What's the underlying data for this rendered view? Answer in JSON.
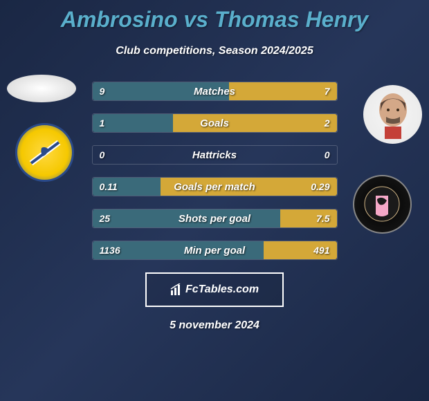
{
  "title": "Ambrosino vs Thomas Henry",
  "subtitle": "Club competitions, Season 2024/2025",
  "date": "5 november 2024",
  "footer_brand": "FcTables.com",
  "colors": {
    "left_fill": "#3a6a7a",
    "right_fill": "#d4a838",
    "title_color": "#5aafcc",
    "text_color": "#ffffff",
    "bg_gradient_start": "#1a2744",
    "bg_gradient_mid": "#26365a"
  },
  "stats": [
    {
      "label": "Matches",
      "left_value": "9",
      "right_value": "7",
      "left_pct": 56,
      "right_pct": 44
    },
    {
      "label": "Goals",
      "left_value": "1",
      "right_value": "2",
      "left_pct": 33,
      "right_pct": 67
    },
    {
      "label": "Hattricks",
      "left_value": "0",
      "right_value": "0",
      "left_pct": 0,
      "right_pct": 0
    },
    {
      "label": "Goals per match",
      "left_value": "0.11",
      "right_value": "0.29",
      "left_pct": 28,
      "right_pct": 72
    },
    {
      "label": "Shots per goal",
      "left_value": "25",
      "right_value": "7.5",
      "left_pct": 77,
      "right_pct": 23
    },
    {
      "label": "Min per goal",
      "left_value": "1136",
      "right_value": "491",
      "left_pct": 70,
      "right_pct": 30
    }
  ]
}
